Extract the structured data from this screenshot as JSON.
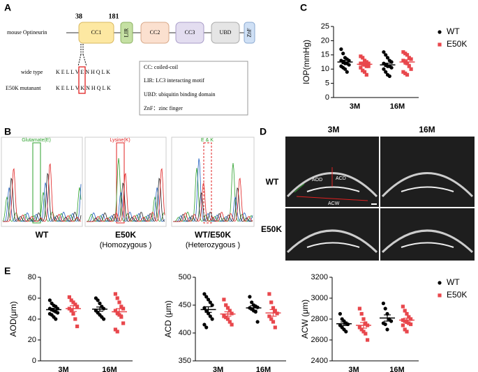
{
  "panel_labels": [
    "A",
    "B",
    "C",
    "D",
    "E"
  ],
  "diagram": {
    "protein": "mouse Optineurin",
    "positions": [
      38,
      181
    ],
    "domains": [
      "CC1",
      "LIR",
      "CC2",
      "CC3",
      "UBD",
      "ZnF"
    ],
    "rows": [
      {
        "label": "wide type",
        "sequence": "K E L L V E N H Q L K"
      },
      {
        "label": "E50K mutanant",
        "sequence": "K E L L V K N H Q L K"
      }
    ],
    "legend": [
      "CC: coiled-coil",
      "LIR: LC3 interacting motif",
      "UBD: ubiquitin binding domain",
      "ZnF：zinc finger"
    ]
  },
  "sequencing": {
    "panels": [
      {
        "annotation": "Glutamate(E)",
        "caption": "WT"
      },
      {
        "annotation": "Lysine(K)",
        "caption": "E50K",
        "subcaption": "(Homozygous )"
      },
      {
        "annotation": "E & K",
        "caption": "WT/E50K",
        "subcaption": "(Heterozygous )"
      }
    ]
  },
  "oct": {
    "columns": [
      "3M",
      "16M"
    ],
    "rows": [
      "WT",
      "E50K"
    ],
    "annotations": [
      "AOD",
      "ACD",
      "ACW"
    ]
  },
  "chart_data": [
    {
      "type": "dot",
      "ylabel": "IOP(mmHg)",
      "categories": [
        "3M",
        "16M"
      ],
      "ylim": [
        0,
        25
      ],
      "yticks": [
        0,
        5,
        10,
        15,
        20,
        25
      ],
      "legend": "right",
      "series": [
        {
          "name": "WT",
          "color": "#000000",
          "marker": "circle",
          "values": [
            [
              17,
              15.5,
              14,
              13.5,
              13,
              13,
              12.5,
              12,
              12,
              11.5,
              11,
              10.5,
              10,
              9
            ],
            [
              16,
              15,
              14,
              13,
              12.5,
              12,
              11.5,
              11,
              11,
              10.5,
              10,
              9,
              8,
              7.5
            ]
          ],
          "means": [
            12.5,
            11.5
          ],
          "errors": [
            0.6,
            0.6
          ]
        },
        {
          "name": "E50K",
          "color": "#e8474c",
          "marker": "square",
          "values": [
            [
              14.5,
              14,
              13,
              12.5,
              12,
              12,
              12,
              11.5,
              11,
              11,
              10.5,
              9.5,
              9,
              8
            ],
            [
              16,
              15.5,
              15,
              14,
              13.5,
              13,
              12.5,
              12,
              11,
              10,
              9,
              8.5,
              8
            ]
          ],
          "means": [
            11.7,
            12.5
          ],
          "errors": [
            0.5,
            0.8
          ]
        }
      ]
    },
    {
      "type": "dot",
      "ylabel": "AOD(μm)",
      "categories": [
        "3M",
        "16M"
      ],
      "ylim": [
        0,
        80
      ],
      "yticks": [
        0,
        20,
        40,
        60,
        80
      ],
      "series": [
        {
          "name": "WT",
          "color": "#000000",
          "marker": "circle",
          "values": [
            [
              58,
              55,
              53,
              52,
              50,
              50,
              49,
              48,
              47,
              46,
              45,
              44,
              42,
              40
            ],
            [
              60,
              58,
              55,
              52,
              50,
              48,
              46,
              44,
              42,
              40
            ]
          ],
          "means": [
            49,
            49.5
          ],
          "errors": [
            1.3,
            2
          ]
        },
        {
          "name": "E50K",
          "color": "#e8474c",
          "marker": "square",
          "values": [
            [
              61,
              58,
              56,
              54,
              52,
              50,
              48,
              45,
              40,
              33
            ],
            [
              64,
              60,
              56,
              52,
              50,
              48,
              46,
              44,
              42,
              36,
              30,
              28
            ]
          ],
          "means": [
            50,
            47
          ],
          "errors": [
            2.8,
            3
          ]
        }
      ]
    },
    {
      "type": "dot",
      "ylabel": "ACD (μm)",
      "categories": [
        "3M",
        "16M"
      ],
      "ylim": [
        350,
        500
      ],
      "yticks": [
        350,
        400,
        450,
        500
      ],
      "series": [
        {
          "name": "WT",
          "color": "#000000",
          "marker": "circle",
          "values": [
            [
              470,
              465,
              460,
              455,
              450,
              445,
              440,
              435,
              430,
              425,
              415,
              410
            ],
            [
              465,
              455,
              450,
              448,
              446,
              445,
              443,
              440,
              438,
              420
            ]
          ],
          "means": [
            442,
            445
          ],
          "errors": [
            5,
            4
          ]
        },
        {
          "name": "E50K",
          "color": "#e8474c",
          "marker": "square",
          "values": [
            [
              460,
              450,
              445,
              440,
              435,
              430,
              428,
              425,
              420,
              415
            ],
            [
              470,
              455,
              445,
              440,
              435,
              430,
              425,
              420,
              410
            ]
          ],
          "means": [
            434,
            436
          ],
          "errors": [
            4,
            6
          ]
        }
      ]
    },
    {
      "type": "dot",
      "ylabel": "ACW (μm)",
      "categories": [
        "3M",
        "16M"
      ],
      "ylim": [
        2400,
        3200
      ],
      "yticks": [
        2400,
        2600,
        2800,
        3000,
        3200
      ],
      "legend": "right",
      "series": [
        {
          "name": "WT",
          "color": "#000000",
          "marker": "circle",
          "values": [
            [
              2850,
              2800,
              2780,
              2760,
              2750,
              2740,
              2720,
              2700,
              2680
            ],
            [
              2950,
              2900,
              2850,
              2800,
              2780,
              2760,
              2750,
              2700
            ]
          ],
          "means": [
            2755,
            2810
          ],
          "errors": [
            17,
            30
          ]
        },
        {
          "name": "E50K",
          "color": "#e8474c",
          "marker": "square",
          "values": [
            [
              2900,
              2850,
              2800,
              2760,
              2740,
              2720,
              2700,
              2680,
              2660,
              2600
            ],
            [
              2920,
              2880,
              2850,
              2820,
              2800,
              2790,
              2780,
              2770,
              2760,
              2750,
              2740,
              2700,
              2680
            ]
          ],
          "means": [
            2740,
            2790
          ],
          "errors": [
            27,
            18
          ]
        }
      ]
    }
  ]
}
